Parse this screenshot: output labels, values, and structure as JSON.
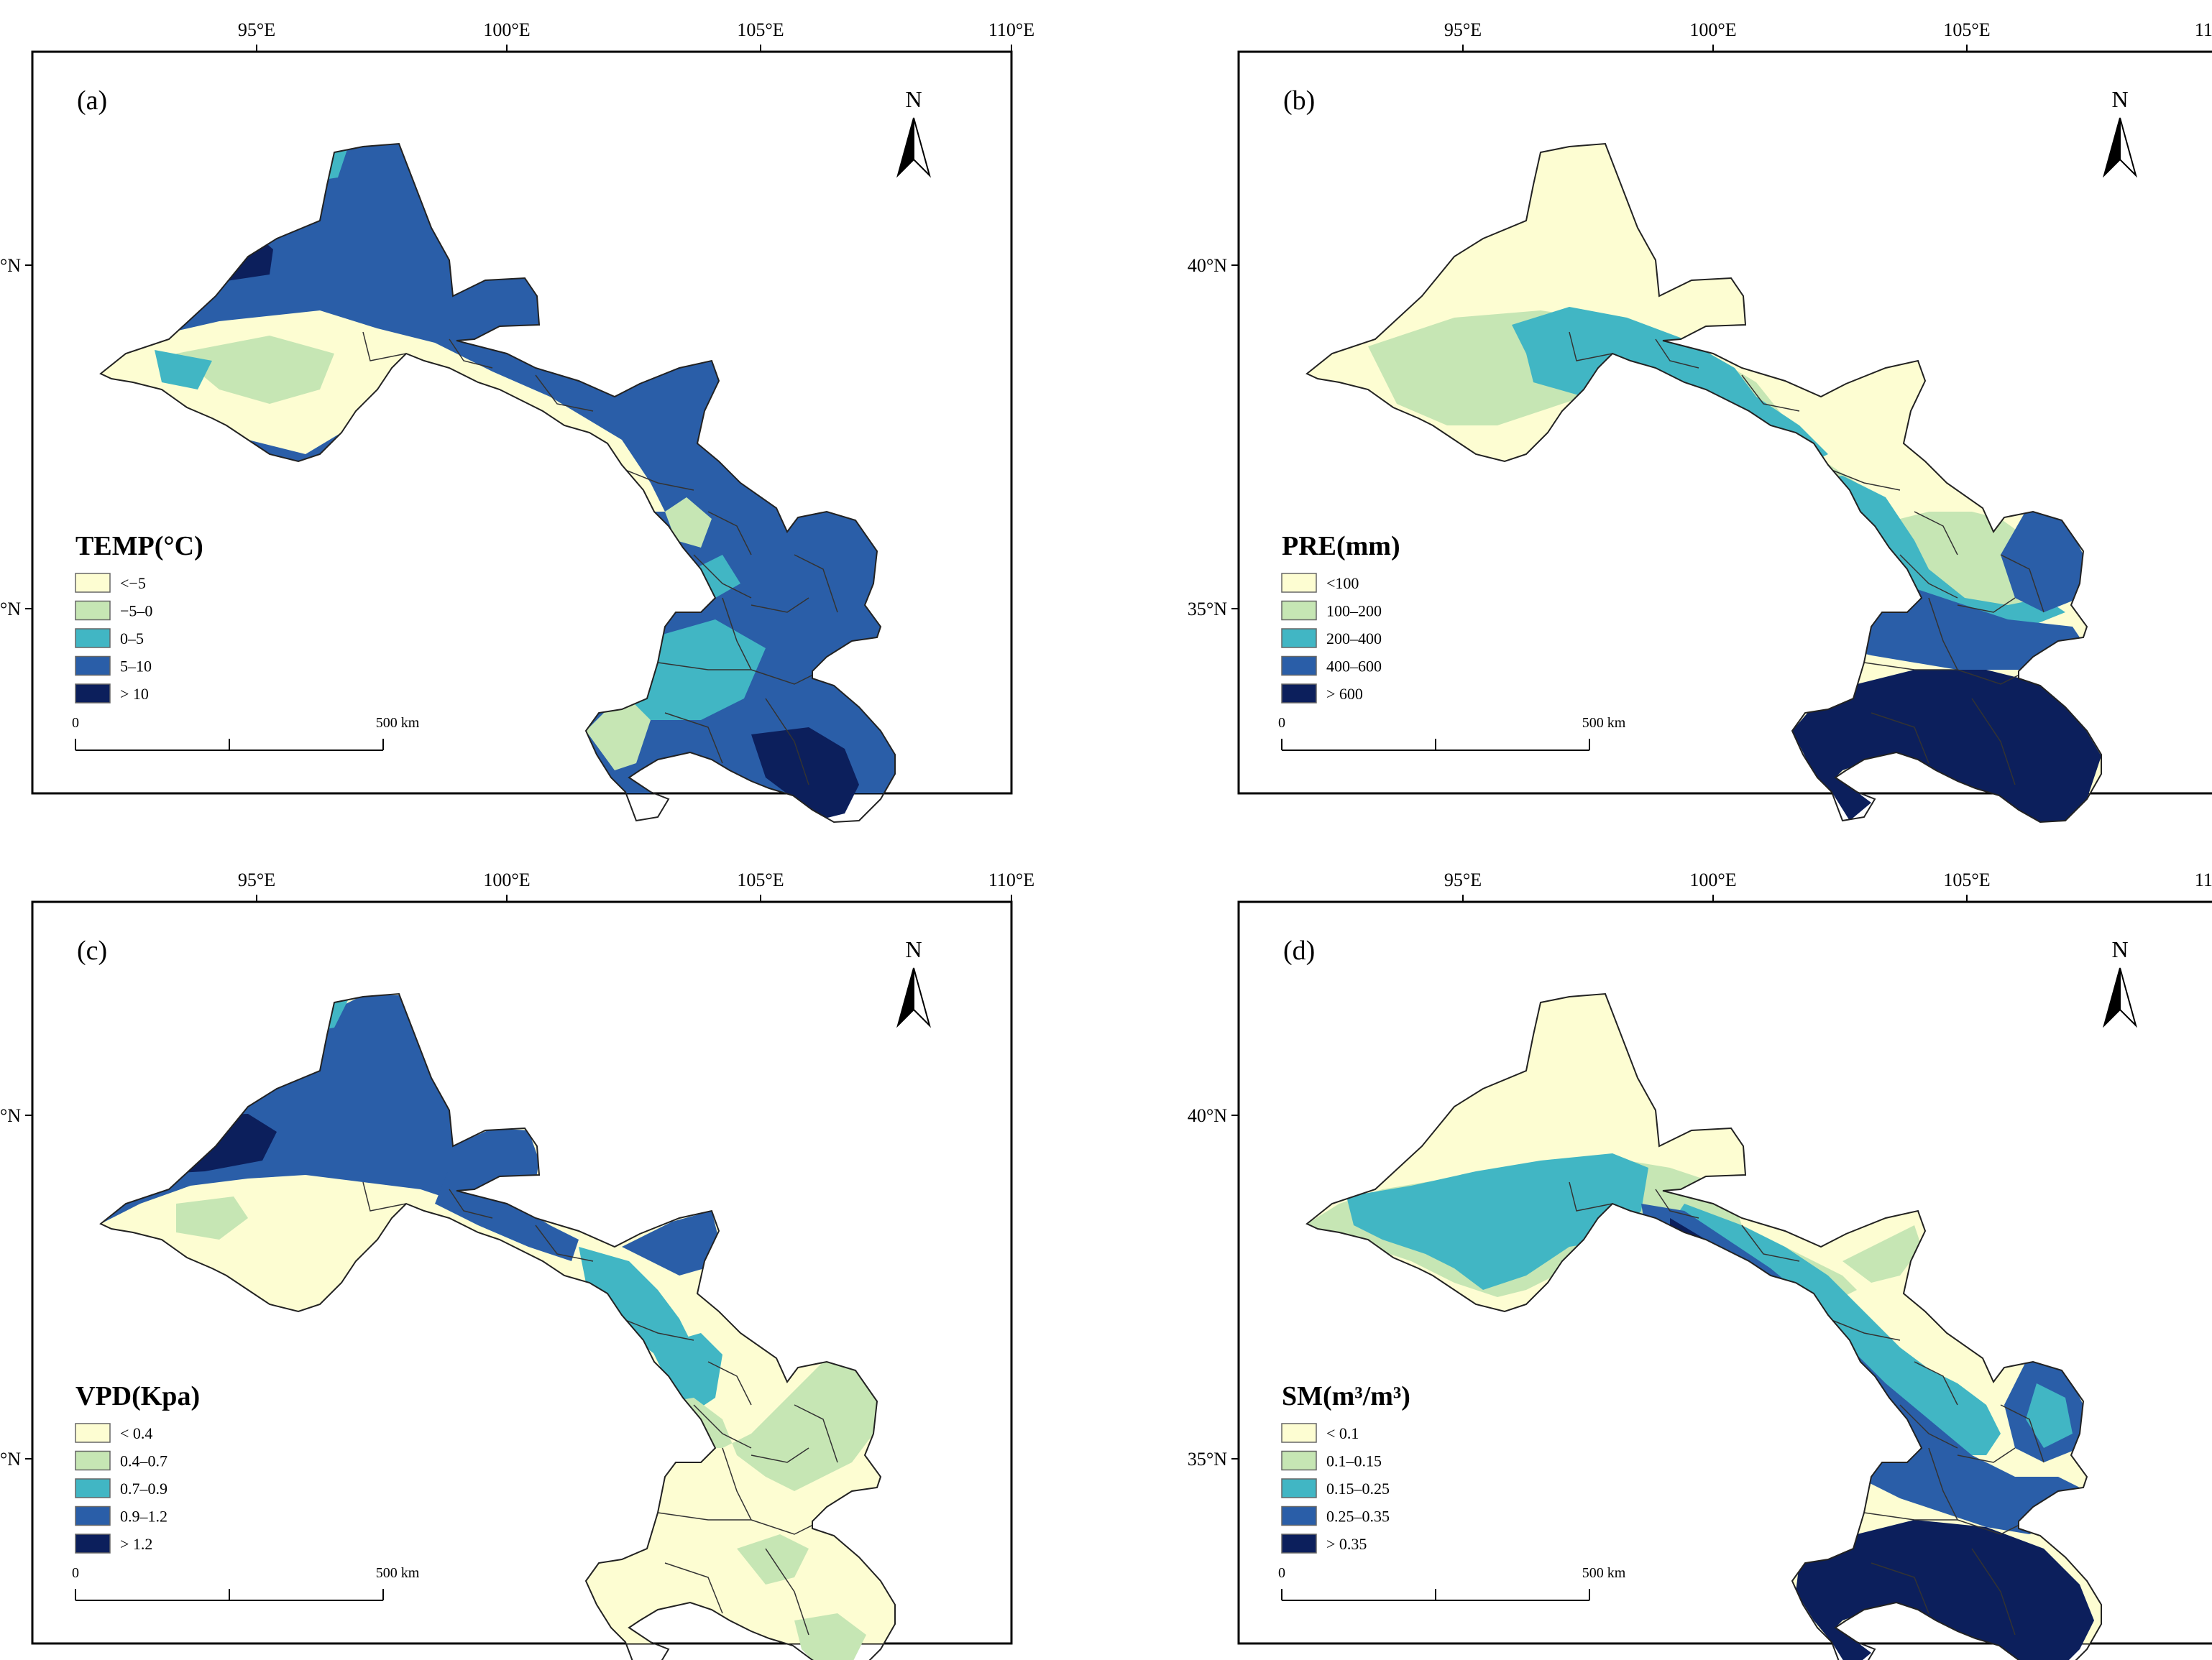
{
  "figure": {
    "lon_ticks": [
      "95°E",
      "100°E",
      "105°E",
      "110°E"
    ],
    "lat_ticks": [
      "40°N",
      "35°N"
    ],
    "north_label": "N",
    "scale_bar": {
      "start": "0",
      "end": "500 km"
    }
  },
  "panels": [
    {
      "id": "a",
      "panel_label": "(a)",
      "title": "TEMP(°C)",
      "legend": [
        {
          "label": "<−5",
          "color": "#fdfdd2"
        },
        {
          "label": "−5–0",
          "color": "#c6e6b4"
        },
        {
          "label": "0–5",
          "color": "#41b6c4"
        },
        {
          "label": "5–10",
          "color": "#2a5ea8"
        },
        {
          "label": "> 10",
          "color": "#0c1f5c"
        }
      ]
    },
    {
      "id": "b",
      "panel_label": "(b)",
      "title": "PRE(mm)",
      "legend": [
        {
          "label": "<100",
          "color": "#fdfdd2"
        },
        {
          "label": "100–200",
          "color": "#c6e6b4"
        },
        {
          "label": "200–400",
          "color": "#41b6c4"
        },
        {
          "label": "400–600",
          "color": "#2a5ea8"
        },
        {
          "label": "> 600",
          "color": "#0c1f5c"
        }
      ]
    },
    {
      "id": "c",
      "panel_label": "(c)",
      "title": "VPD(Kpa)",
      "legend": [
        {
          "label": "< 0.4",
          "color": "#fdfdd2"
        },
        {
          "label": "0.4–0.7",
          "color": "#c6e6b4"
        },
        {
          "label": "0.7–0.9",
          "color": "#41b6c4"
        },
        {
          "label": "0.9–1.2",
          "color": "#2a5ea8"
        },
        {
          "label": "> 1.2",
          "color": "#0c1f5c"
        }
      ]
    },
    {
      "id": "d",
      "panel_label": "(d)",
      "title": "SM(m³/m³)",
      "legend": [
        {
          "label": "< 0.1",
          "color": "#fdfdd2"
        },
        {
          "label": "0.1–0.15",
          "color": "#c6e6b4"
        },
        {
          "label": "0.15–0.25",
          "color": "#41b6c4"
        },
        {
          "label": "0.25–0.35",
          "color": "#2a5ea8"
        },
        {
          "label": "> 0.35",
          "color": "#0c1f5c"
        }
      ]
    }
  ]
}
